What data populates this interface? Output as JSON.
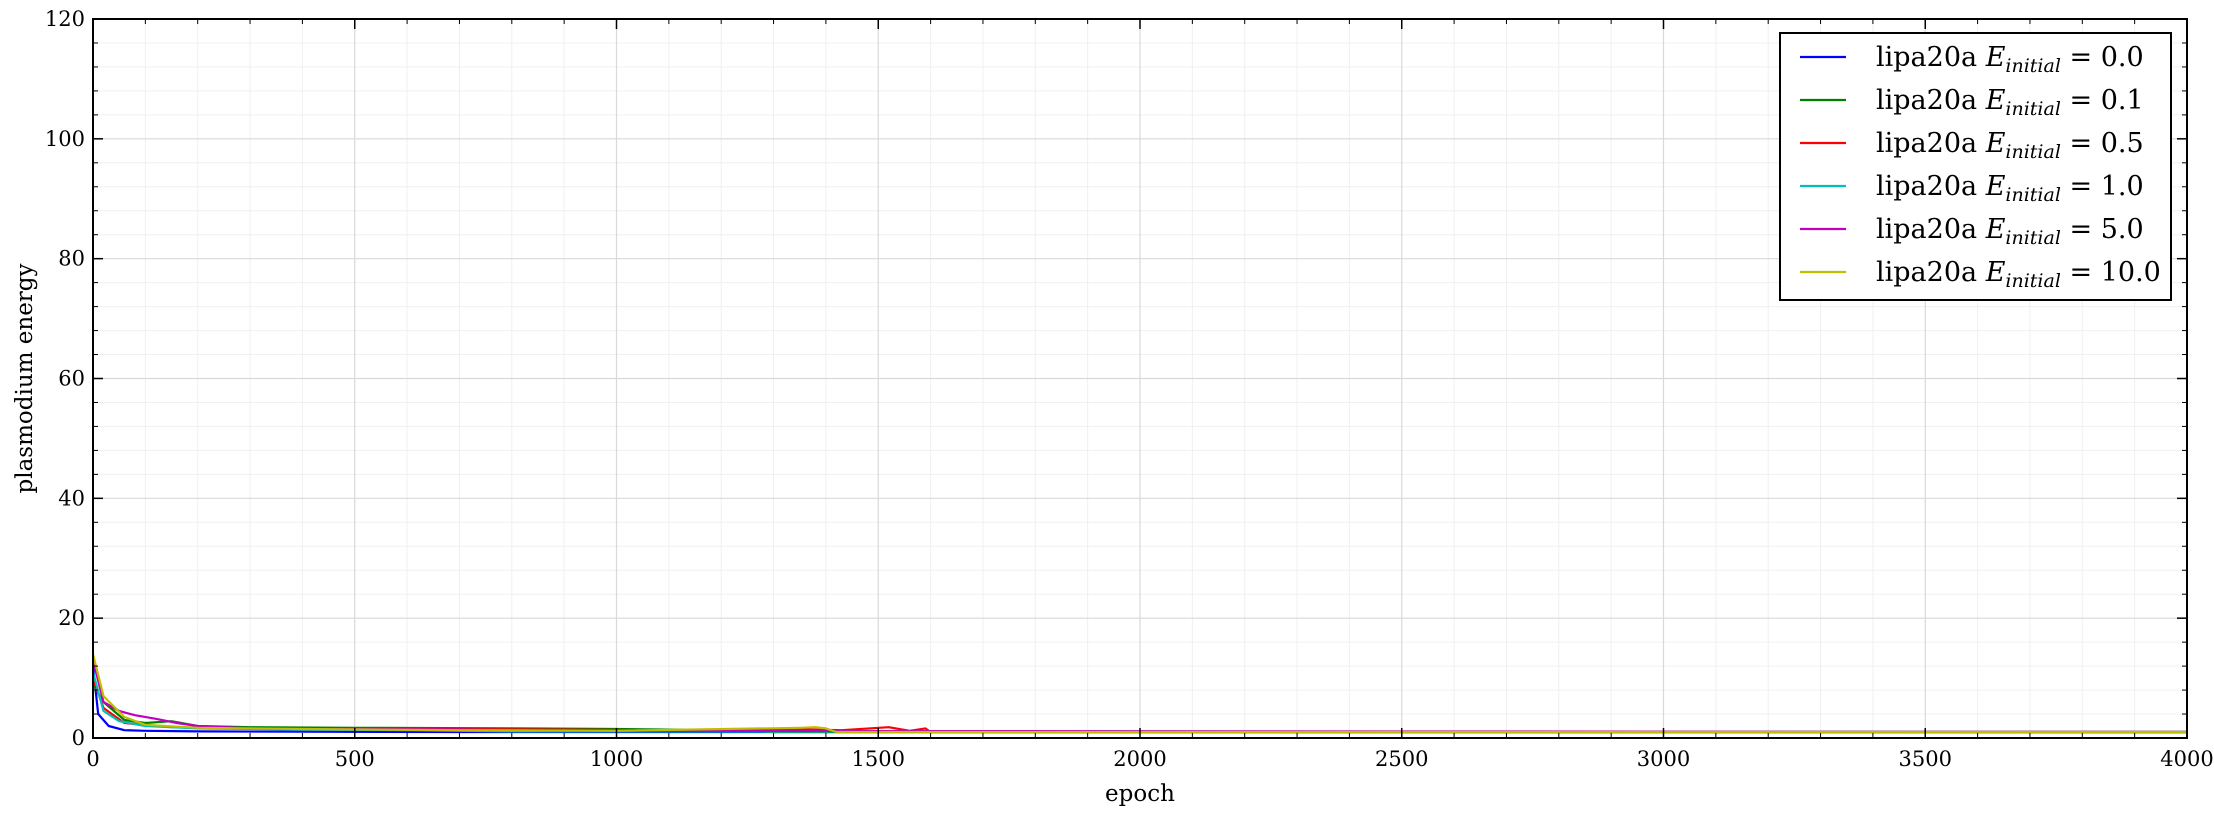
{
  "chart_data": {
    "type": "line",
    "title": "",
    "xlabel": "epoch",
    "ylabel": "plasmodium energy",
    "xlim": [
      0,
      4000
    ],
    "ylim": [
      0,
      120
    ],
    "xticks": [
      "0",
      "500",
      "1000",
      "1500",
      "2000",
      "2500",
      "3000",
      "3500",
      "4000"
    ],
    "yticks": [
      "0",
      "20",
      "40",
      "60",
      "80",
      "100",
      "120"
    ],
    "grid": true,
    "legend_position": "top-right",
    "series": [
      {
        "name": "lipa20a E_initial = 0.0",
        "legend_prefix": "lipa20a",
        "legend_math": "E",
        "legend_sub": "initial",
        "legend_value": "= 0.0",
        "color": "#0000ff",
        "x": [
          0,
          10,
          30,
          60,
          100,
          200,
          400,
          700,
          1000,
          4000
        ],
        "y": [
          12.0,
          4.0,
          2.0,
          1.3,
          1.2,
          1.1,
          1.05,
          1.0,
          1.0,
          1.0
        ]
      },
      {
        "name": "lipa20a E_initial = 0.1",
        "legend_prefix": "lipa20a",
        "legend_math": "E",
        "legend_sub": "initial",
        "legend_value": "= 0.1",
        "color": "#008000",
        "x": [
          0,
          20,
          60,
          100,
          150,
          200,
          300,
          500,
          800,
          1000,
          1100,
          1200,
          1250,
          1300,
          4000
        ],
        "y": [
          9.0,
          6.0,
          3.0,
          2.5,
          2.8,
          2.0,
          1.8,
          1.7,
          1.6,
          1.5,
          1.4,
          1.3,
          1.2,
          1.0,
          1.0
        ]
      },
      {
        "name": "lipa20a E_initial = 0.5",
        "legend_prefix": "lipa20a",
        "legend_math": "E",
        "legend_sub": "initial",
        "legend_value": "= 0.5",
        "color": "#ff0000",
        "x": [
          0,
          20,
          60,
          150,
          300,
          600,
          900,
          1200,
          1320,
          1430,
          1520,
          1560,
          1590,
          1600,
          4000
        ],
        "y": [
          10.0,
          5.0,
          2.5,
          1.8,
          1.6,
          1.5,
          1.4,
          1.2,
          1.5,
          1.3,
          1.8,
          1.2,
          1.6,
          1.0,
          1.0
        ]
      },
      {
        "name": "lipa20a E_initial = 1.0",
        "legend_prefix": "lipa20a",
        "legend_math": "E",
        "legend_sub": "initial",
        "legend_value": "= 1.0",
        "color": "#00bfbf",
        "x": [
          0,
          20,
          50,
          100,
          200,
          400,
          600,
          800,
          4000
        ],
        "y": [
          11.0,
          4.5,
          2.8,
          2.0,
          1.6,
          1.4,
          1.3,
          1.1,
          1.0
        ]
      },
      {
        "name": "lipa20a E_initial = 5.0",
        "legend_prefix": "lipa20a",
        "legend_math": "E",
        "legend_sub": "initial",
        "legend_value": "= 5.0",
        "color": "#bf00bf",
        "x": [
          0,
          20,
          50,
          80,
          120,
          160,
          200,
          300,
          500,
          700,
          900,
          4000
        ],
        "y": [
          13.0,
          6.0,
          4.5,
          3.8,
          3.2,
          2.5,
          2.0,
          1.6,
          1.5,
          1.4,
          1.2,
          1.0
        ]
      },
      {
        "name": "lipa20a E_initial = 10.0",
        "legend_prefix": "lipa20a",
        "legend_math": "E",
        "legend_sub": "initial",
        "legend_value": "= 10.0",
        "color": "#bfbf00",
        "x": [
          0,
          20,
          60,
          100,
          200,
          400,
          700,
          1000,
          1350,
          1380,
          1400,
          1420,
          4000
        ],
        "y": [
          14.0,
          7.0,
          3.5,
          2.2,
          1.7,
          1.5,
          1.3,
          1.2,
          1.7,
          1.8,
          1.6,
          1.0,
          1.0
        ]
      }
    ]
  }
}
